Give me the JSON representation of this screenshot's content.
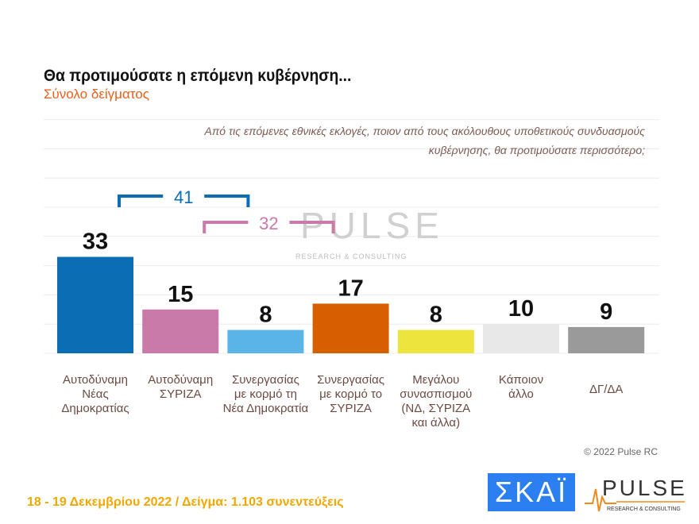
{
  "header": {
    "title": "Θα προτιμούσατε η επόμενη κυβέρνηση...",
    "subtitle": "Σύνολο δείγματος",
    "question": "Από τις επόμενες εθνικές εκλογές, ποιον από τους ακόλουθους υποθετικούς συνδυασμούς κυβέρνησης, θα προτιμούσατε περισσότερο;"
  },
  "chart_data": {
    "type": "bar",
    "ylim": [
      0,
      80
    ],
    "grid": true,
    "categories": [
      "Αυτοδύναμη\nΝέας\nΔημοκρατίας",
      "Αυτοδύναμη\nΣΥΡΙΖΑ",
      "Συνεργασίας\nμε κορμό τη\nΝέα Δημοκρατία",
      "Συνεργασίας\nμε κορμό το\nΣΥΡΙΖΑ",
      "Μεγάλου\nσυνασπισμού\n(ΝΔ, ΣΥΡΙΖΑ\nκαι άλλα)",
      "Κάποιον\nάλλο",
      "ΔΓ/ΔΑ"
    ],
    "values": [
      33,
      15,
      8,
      17,
      8,
      10,
      9
    ],
    "colors": [
      "#0b6db3",
      "#c97aa8",
      "#5ab5e6",
      "#d65f00",
      "#ede43e",
      "#e8e8e8",
      "#9a9a9a"
    ],
    "annotations": [
      {
        "label": "41",
        "from": 0,
        "to": 2,
        "color": "#0b6db3"
      },
      {
        "label": "32",
        "from": 1,
        "to": 3,
        "color": "#c97aa8"
      }
    ]
  },
  "watermark": {
    "brand": "PULSE",
    "tagline": "RESEARCH & CONSULTING"
  },
  "copyright": "© 2022 Pulse RC",
  "footer": "18 - 19  Δεκεμβρίου  2022  /  Δείγμα:  1.103 συνεντεύξεις",
  "logos": {
    "skai": "ΣΚΑΪ",
    "pulse": "PULSE",
    "pulse_tagline": "RESEARCH & CONSULTING"
  }
}
